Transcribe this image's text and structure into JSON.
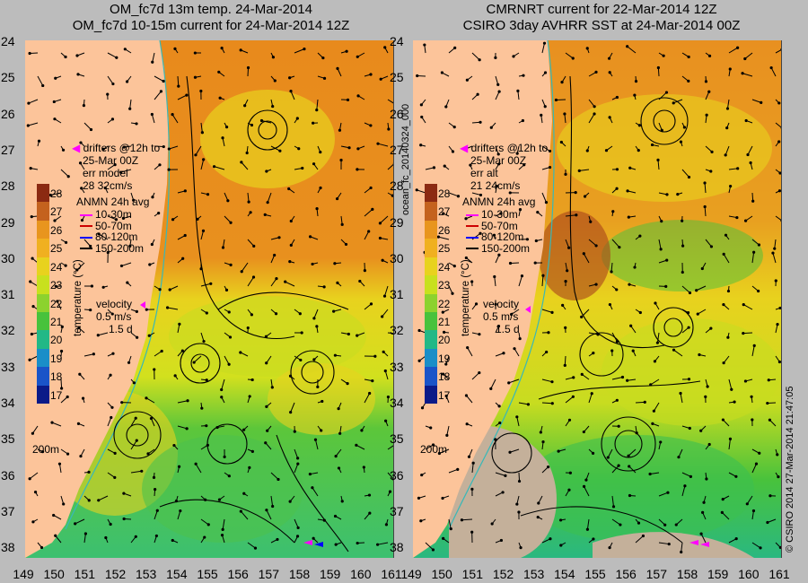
{
  "left_panel": {
    "title1": "OM_fc7d 13m temp. 24-Mar-2014",
    "title2": "OM_fc7d 10-15m current for 24-Mar-2014 12Z",
    "drifters": [
      "drifters @12h to",
      "25-Mar 00Z",
      "err model",
      "28 32cm/s"
    ]
  },
  "right_panel": {
    "title1": "CMRNRT current for 22-Mar-2014 12Z",
    "title2": "CSIRO 3day AVHRR SST at 24-Mar-2014 00Z",
    "drifters": [
      "drifters @12h to",
      "25-Mar 00Z",
      "err alt",
      "21 24cm/s"
    ],
    "side_label": "ocean_fc_20140324_000"
  },
  "colorbar": {
    "ticks": [
      "28",
      "27",
      "26",
      "25",
      "24",
      "23",
      "22",
      "21",
      "20",
      "19",
      "18",
      "17"
    ],
    "label": "temperature (°C)",
    "colors": [
      "#8b2a12",
      "#c4621e",
      "#e8951e",
      "#f0b020",
      "#e8d21e",
      "#c8e01e",
      "#8cd22e",
      "#48c23c",
      "#22b886",
      "#1a8ec8",
      "#1a54c8",
      "#0a1a88"
    ]
  },
  "legend": {
    "title": "ANMN 24h avg",
    "items": [
      {
        "label": "10-30m",
        "color": "#ff00ff"
      },
      {
        "label": "50-70m",
        "color": "#cc0000"
      },
      {
        "label": "80-120m",
        "color": "#0000ff"
      },
      {
        "label": "150-200m",
        "color": "#000000"
      }
    ]
  },
  "velocity": {
    "label": "velocity",
    "speed": "0.5 m/s",
    "time": "1.5 d"
  },
  "isobath_label": "200m",
  "y_ticks": [
    "24",
    "25",
    "26",
    "27",
    "28",
    "29",
    "30",
    "31",
    "32",
    "33",
    "34",
    "35",
    "36",
    "37",
    "38"
  ],
  "x_ticks": [
    "149",
    "150",
    "151",
    "152",
    "153",
    "154",
    "155",
    "156",
    "157",
    "158",
    "159",
    "160",
    "161"
  ],
  "credit": "© CSIRO 2014   27-Mar-2014 21:47:05",
  "colors": {
    "land": "#fcc49a",
    "background": "#bcbcbc"
  }
}
